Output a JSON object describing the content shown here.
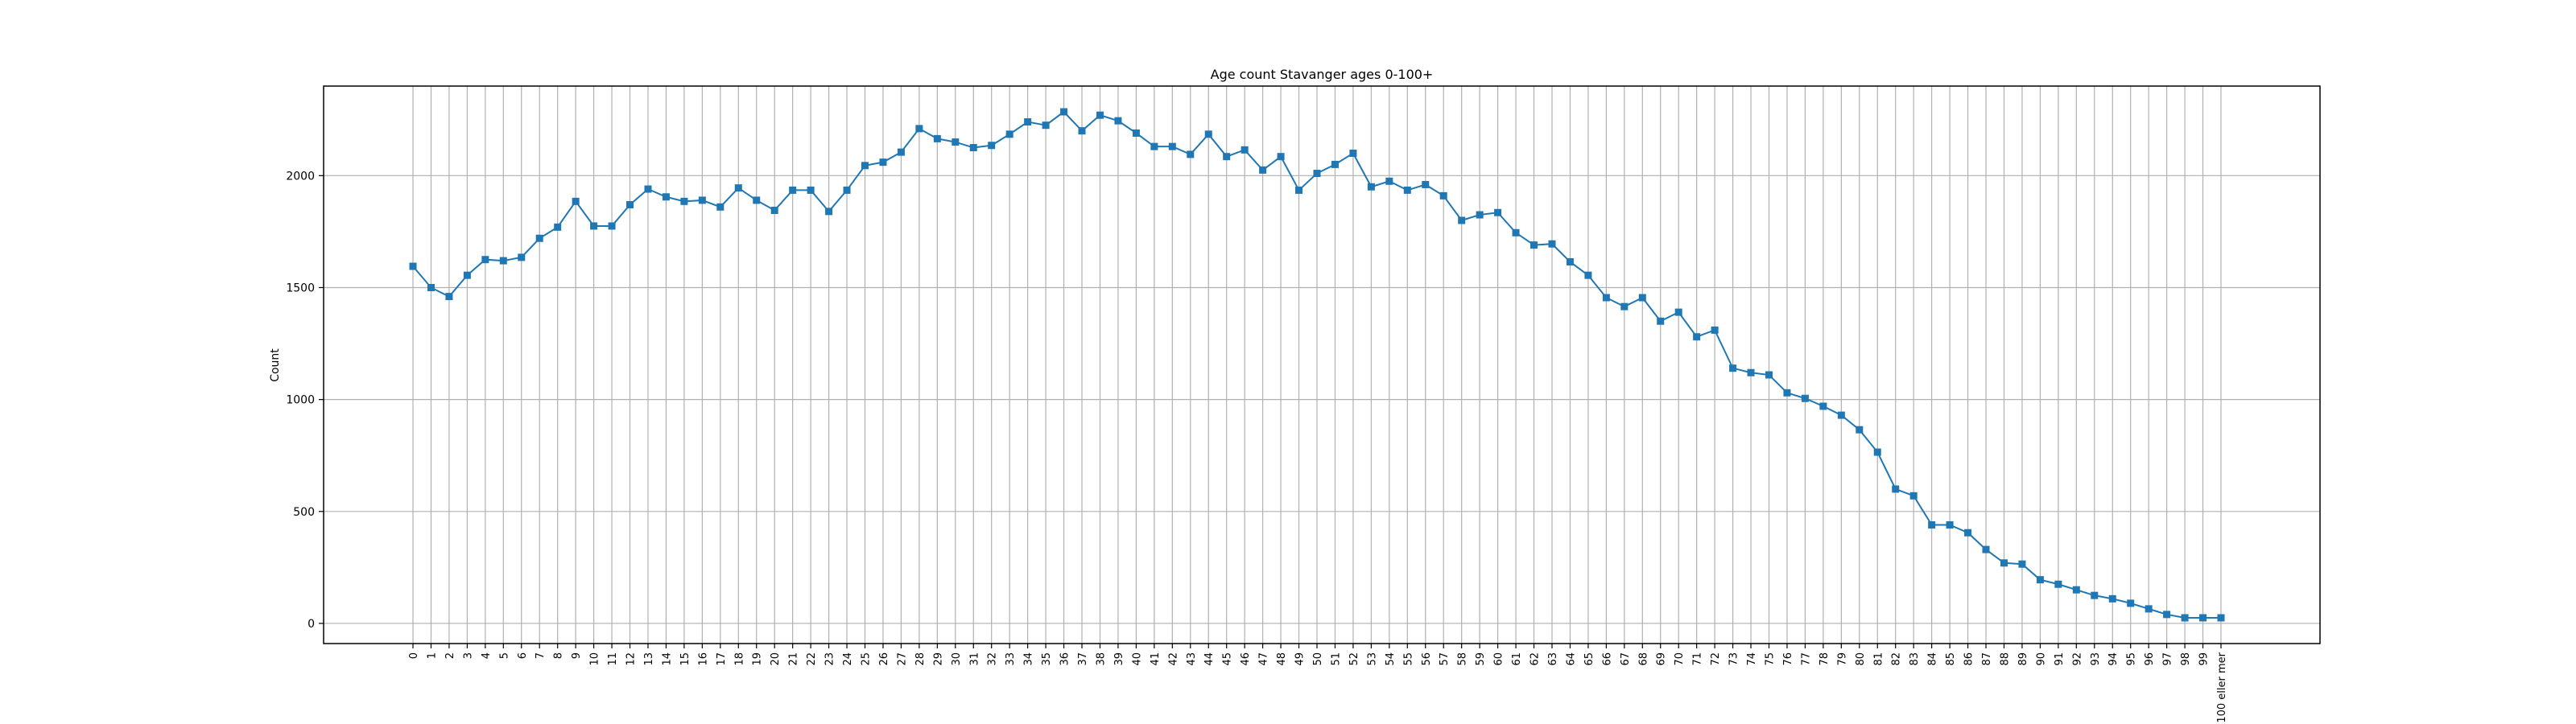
{
  "chart_data": {
    "type": "line",
    "title": "Age count Stavanger ages 0-100+",
    "xlabel": "",
    "ylabel": "Count",
    "categories": [
      "0",
      "1",
      "2",
      "3",
      "4",
      "5",
      "6",
      "7",
      "8",
      "9",
      "10",
      "11",
      "12",
      "13",
      "14",
      "15",
      "16",
      "17",
      "18",
      "19",
      "20",
      "21",
      "22",
      "23",
      "24",
      "25",
      "26",
      "27",
      "28",
      "29",
      "30",
      "31",
      "32",
      "33",
      "34",
      "35",
      "36",
      "37",
      "38",
      "39",
      "40",
      "41",
      "42",
      "43",
      "44",
      "45",
      "46",
      "47",
      "48",
      "49",
      "50",
      "51",
      "52",
      "53",
      "54",
      "55",
      "56",
      "57",
      "58",
      "59",
      "60",
      "61",
      "62",
      "63",
      "64",
      "65",
      "66",
      "67",
      "68",
      "69",
      "70",
      "71",
      "72",
      "73",
      "74",
      "75",
      "76",
      "77",
      "78",
      "79",
      "80",
      "81",
      "82",
      "83",
      "84",
      "85",
      "86",
      "87",
      "88",
      "89",
      "90",
      "91",
      "92",
      "93",
      "94",
      "95",
      "96",
      "97",
      "98",
      "99",
      "100 eller mer"
    ],
    "series": [
      {
        "values": [
          1595,
          1500,
          1460,
          1555,
          1625,
          1620,
          1635,
          1720,
          1770,
          1885,
          1775,
          1775,
          1870,
          1940,
          1905,
          1885,
          1890,
          1860,
          1945,
          1890,
          1845,
          1935,
          1935,
          1840,
          1935,
          2045,
          2060,
          2105,
          2210,
          2165,
          2150,
          2125,
          2135,
          2185,
          2240,
          2225,
          2285,
          2200,
          2270,
          2245,
          2190,
          2130,
          2130,
          2095,
          2185,
          2085,
          2115,
          2025,
          2085,
          1935,
          2010,
          2050,
          2100,
          1950,
          1975,
          1935,
          1960,
          1910,
          1800,
          1825,
          1835,
          1745,
          1690,
          1695,
          1615,
          1555,
          1455,
          1415,
          1455,
          1350,
          1390,
          1280,
          1310,
          1140,
          1120,
          1110,
          1030,
          1005,
          970,
          930,
          865,
          765,
          600,
          570,
          440,
          440,
          405,
          330,
          270,
          265,
          195,
          175,
          150,
          125,
          110,
          90,
          65,
          40,
          25,
          25,
          25
        ]
      }
    ],
    "ylim": [
      -90,
      2400
    ],
    "yticks": [
      0,
      500,
      1000,
      1500,
      2000
    ],
    "grid": true,
    "colors": {
      "line": "#1f77b4",
      "grid": "#b0b0b0",
      "axes": "#000000"
    }
  }
}
